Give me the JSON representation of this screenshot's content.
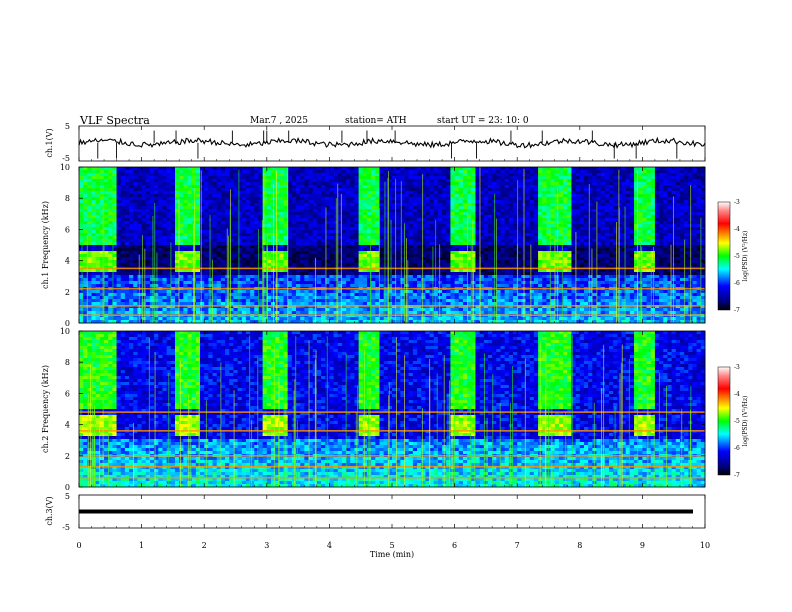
{
  "header": {
    "title": "VLF  Spectra",
    "date": "Mar.7  , 2025",
    "station": "station= ATH",
    "start": "start  UT  =    23: 10: 0"
  },
  "colors": {
    "spectrogram_base": "#0a1fa8",
    "band_dark": "#020a6a",
    "burst_green": "#3ddc3d",
    "line_red": "#e01a1a",
    "trace": "#000000"
  },
  "chart_data": [
    {
      "type": "line",
      "panel": "ch1-waveform",
      "ylabel": "ch.1(V)",
      "ylim": [
        -5,
        5
      ],
      "yticks": [
        "5",
        "-5"
      ],
      "description_values": "noisy waveform around 0 V with sporadic spikes",
      "baseline": 0.2,
      "spikes_min": [
        0.3,
        0.6,
        1.2,
        1.55,
        1.9,
        2.45,
        2.95,
        3.0,
        3.35,
        4.2,
        4.6,
        5.05,
        5.95,
        6.35,
        6.9,
        7.4,
        8.2,
        8.55,
        8.9,
        9.55
      ]
    },
    {
      "type": "heatmap",
      "panel": "ch1-spectrogram",
      "ylabel": "ch.1\nFrequency  (kHz)",
      "ylim": [
        0,
        10
      ],
      "yticks": [
        "0",
        "2",
        "4",
        "6",
        "8",
        "10"
      ],
      "colorbar": {
        "label": "log(PSD) (V²/Hz)",
        "ticks": [
          "-3",
          "-4",
          "-5",
          "-6",
          "-7"
        ],
        "range": [
          -7,
          -3
        ]
      },
      "bursts_min": [
        [
          0.0,
          0.6
        ],
        [
          1.55,
          1.95
        ],
        [
          2.95,
          3.35
        ],
        [
          4.45,
          4.8
        ],
        [
          5.9,
          6.3
        ],
        [
          7.35,
          7.85
        ],
        [
          8.85,
          9.2
        ]
      ],
      "bursts_level_log": -5.2,
      "background_level_log": -6.4,
      "dark_band_khz": [
        3.0,
        5.0
      ],
      "dark_band_level_log": -6.9,
      "lines_khz": [
        0.5,
        1.1,
        2.2,
        3.5
      ]
    },
    {
      "type": "heatmap",
      "panel": "ch2-spectrogram",
      "ylabel": "ch.2\nFrequency  (kHz)",
      "ylim": [
        0,
        10
      ],
      "yticks": [
        "0",
        "2",
        "4",
        "6",
        "8",
        "10"
      ],
      "colorbar": {
        "label": "log(PSD) (V²/Hz)",
        "ticks": [
          "-3",
          "-4",
          "-5",
          "-6",
          "-7"
        ],
        "range": [
          -7,
          -3
        ]
      },
      "bursts_min": [
        [
          0.0,
          0.6
        ],
        [
          1.55,
          1.95
        ],
        [
          2.95,
          3.35
        ],
        [
          4.45,
          4.8
        ],
        [
          5.9,
          6.3
        ],
        [
          7.35,
          7.85
        ],
        [
          8.85,
          9.2
        ]
      ],
      "bursts_level_log": -5.1,
      "background_level_log": -6.2,
      "lines_khz": [
        0.6,
        1.3,
        2.0,
        3.6,
        4.8
      ]
    },
    {
      "type": "line",
      "panel": "ch3-waveform",
      "ylabel": "ch.3(V)",
      "ylim": [
        -5,
        5
      ],
      "yticks": [
        "5",
        "-5"
      ],
      "constant_value": 0.0
    }
  ],
  "xaxis": {
    "label": "Time  (min)",
    "ticks": [
      "0",
      "1",
      "2",
      "3",
      "4",
      "5",
      "6",
      "7",
      "8",
      "9",
      "10"
    ],
    "range": [
      0,
      10
    ]
  }
}
